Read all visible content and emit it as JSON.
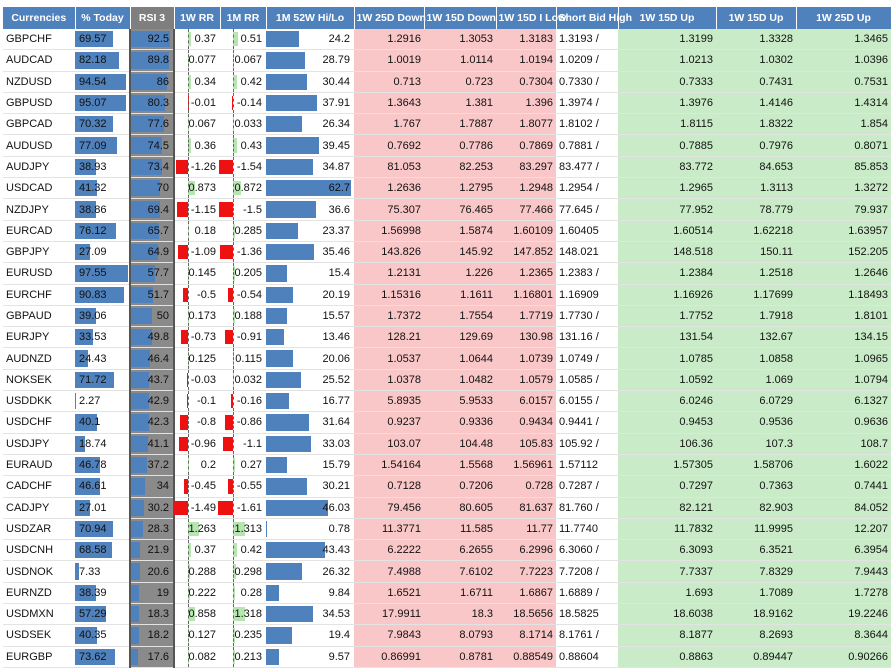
{
  "headers": [
    "Currencies",
    "% Today",
    "RSI 3",
    "1W RR",
    "1M RR",
    "1M 52W Hi/Lo",
    "1W 25D Down",
    "1W 15D Down",
    "1W 15D I Low",
    "Short Bid High",
    "1W 15D Up",
    "1W 15D Up",
    "1W 25D Up"
  ],
  "rows": [
    {
      "pair": "GBPCHF",
      "pct": "69.57",
      "rsi": "92.5",
      "rr1w": "0.37",
      "rr1m": "0.51",
      "hilo": "24.2",
      "d25": "1.2916",
      "d15": "1.3053",
      "low": "1.3183",
      "bid": "1.3193 /",
      "u15": "1.3199",
      "u15b": "1.3328",
      "u25": "1.3465"
    },
    {
      "pair": "AUDCAD",
      "pct": "82.18",
      "rsi": "89.8",
      "rr1w": "0.077",
      "rr1m": "0.067",
      "hilo": "28.79",
      "d25": "1.0019",
      "d15": "1.0114",
      "low": "1.0194",
      "bid": "1.0209 /",
      "u15": "1.0213",
      "u15b": "1.0302",
      "u25": "1.0396"
    },
    {
      "pair": "NZDUSD",
      "pct": "94.54",
      "rsi": "86",
      "rr1w": "0.34",
      "rr1m": "0.42",
      "hilo": "30.44",
      "d25": "0.713",
      "d15": "0.723",
      "low": "0.7304",
      "bid": "0.7330 /",
      "u15": "0.7333",
      "u15b": "0.7431",
      "u25": "0.7531"
    },
    {
      "pair": "GBPUSD",
      "pct": "95.07",
      "rsi": "80.3",
      "rr1w": "-0.01",
      "rr1m": "-0.14",
      "hilo": "37.91",
      "d25": "1.3643",
      "d15": "1.381",
      "low": "1.396",
      "bid": "1.3974 /",
      "u15": "1.3976",
      "u15b": "1.4146",
      "u25": "1.4314"
    },
    {
      "pair": "GBPCAD",
      "pct": "70.32",
      "rsi": "77.6",
      "rr1w": "0.067",
      "rr1m": "0.033",
      "hilo": "26.34",
      "d25": "1.767",
      "d15": "1.7887",
      "low": "1.8077",
      "bid": "1.8102 /",
      "u15": "1.8115",
      "u15b": "1.8322",
      "u25": "1.854"
    },
    {
      "pair": "AUDUSD",
      "pct": "77.09",
      "rsi": "74.5",
      "rr1w": "0.36",
      "rr1m": "0.43",
      "hilo": "39.45",
      "d25": "0.7692",
      "d15": "0.7786",
      "low": "0.7869",
      "bid": "0.7881 /",
      "u15": "0.7885",
      "u15b": "0.7976",
      "u25": "0.8071"
    },
    {
      "pair": "AUDJPY",
      "pct": "38.93",
      "rsi": "73.4",
      "rr1w": "-1.26",
      "rr1m": "-1.54",
      "hilo": "34.87",
      "d25": "81.053",
      "d15": "82.253",
      "low": "83.297",
      "bid": "83.477 /",
      "u15": "83.772",
      "u15b": "84.653",
      "u25": "85.853"
    },
    {
      "pair": "USDCAD",
      "pct": "41.32",
      "rsi": "70",
      "rr1w": "0.873",
      "rr1m": "0.872",
      "hilo": "62.7",
      "d25": "1.2636",
      "d15": "1.2795",
      "low": "1.2948",
      "bid": "1.2954 /",
      "u15": "1.2965",
      "u15b": "1.3113",
      "u25": "1.3272"
    },
    {
      "pair": "NZDJPY",
      "pct": "38.86",
      "rsi": "69.4",
      "rr1w": "-1.15",
      "rr1m": "-1.5",
      "hilo": "36.6",
      "d25": "75.307",
      "d15": "76.465",
      "low": "77.466",
      "bid": "77.645 /",
      "u15": "77.952",
      "u15b": "78.779",
      "u25": "79.937"
    },
    {
      "pair": "EURCAD",
      "pct": "76.12",
      "rsi": "65.7",
      "rr1w": "0.18",
      "rr1m": "0.285",
      "hilo": "23.37",
      "d25": "1.56998",
      "d15": "1.5874",
      "low": "1.60109",
      "bid": "1.60405",
      "u15": "1.60514",
      "u15b": "1.62218",
      "u25": "1.63957"
    },
    {
      "pair": "GBPJPY",
      "pct": "27.09",
      "rsi": "64.9",
      "rr1w": "-1.09",
      "rr1m": "-1.36",
      "hilo": "35.46",
      "d25": "143.826",
      "d15": "145.92",
      "low": "147.852",
      "bid": "148.021",
      "u15": "148.518",
      "u15b": "150.11",
      "u25": "152.205"
    },
    {
      "pair": "EURUSD",
      "pct": "97.55",
      "rsi": "57.7",
      "rr1w": "0.145",
      "rr1m": "0.205",
      "hilo": "15.4",
      "d25": "1.2131",
      "d15": "1.226",
      "low": "1.2365",
      "bid": "1.2383 /",
      "u15": "1.2384",
      "u15b": "1.2518",
      "u25": "1.2646"
    },
    {
      "pair": "EURCHF",
      "pct": "90.83",
      "rsi": "51.7",
      "rr1w": "-0.5",
      "rr1m": "-0.54",
      "hilo": "20.19",
      "d25": "1.15316",
      "d15": "1.1611",
      "low": "1.16801",
      "bid": "1.16909",
      "u15": "1.16926",
      "u15b": "1.17699",
      "u25": "1.18493"
    },
    {
      "pair": "GBPAUD",
      "pct": "39.06",
      "rsi": "50",
      "rr1w": "0.173",
      "rr1m": "0.188",
      "hilo": "15.57",
      "d25": "1.7372",
      "d15": "1.7554",
      "low": "1.7719",
      "bid": "1.7730 /",
      "u15": "1.7752",
      "u15b": "1.7918",
      "u25": "1.8101"
    },
    {
      "pair": "EURJPY",
      "pct": "33.53",
      "rsi": "49.8",
      "rr1w": "-0.73",
      "rr1m": "-0.91",
      "hilo": "13.46",
      "d25": "128.21",
      "d15": "129.69",
      "low": "130.98",
      "bid": "131.16 /",
      "u15": "131.54",
      "u15b": "132.67",
      "u25": "134.15"
    },
    {
      "pair": "AUDNZD",
      "pct": "24.43",
      "rsi": "46.4",
      "rr1w": "0.125",
      "rr1m": "0.115",
      "hilo": "20.06",
      "d25": "1.0537",
      "d15": "1.0644",
      "low": "1.0739",
      "bid": "1.0749 /",
      "u15": "1.0785",
      "u15b": "1.0858",
      "u25": "1.0965"
    },
    {
      "pair": "NOKSEK",
      "pct": "71.72",
      "rsi": "43.7",
      "rr1w": "-0.03",
      "rr1m": "0.032",
      "hilo": "25.52",
      "d25": "1.0378",
      "d15": "1.0482",
      "low": "1.0579",
      "bid": "1.0585 /",
      "u15": "1.0592",
      "u15b": "1.069",
      "u25": "1.0794"
    },
    {
      "pair": "USDDKK",
      "pct": "2.27",
      "rsi": "42.9",
      "rr1w": "-0.1",
      "rr1m": "-0.16",
      "hilo": "16.77",
      "d25": "5.8935",
      "d15": "5.9533",
      "low": "6.0157",
      "bid": "6.0155 /",
      "u15": "6.0246",
      "u15b": "6.0729",
      "u25": "6.1327"
    },
    {
      "pair": "USDCHF",
      "pct": "40.1",
      "rsi": "42.3",
      "rr1w": "-0.8",
      "rr1m": "-0.86",
      "hilo": "31.64",
      "d25": "0.9237",
      "d15": "0.9336",
      "low": "0.9434",
      "bid": "0.9441 /",
      "u15": "0.9453",
      "u15b": "0.9536",
      "u25": "0.9636"
    },
    {
      "pair": "USDJPY",
      "pct": "18.74",
      "rsi": "41.1",
      "rr1w": "-0.96",
      "rr1m": "-1.1",
      "hilo": "33.03",
      "d25": "103.07",
      "d15": "104.48",
      "low": "105.83",
      "bid": "105.92 /",
      "u15": "106.36",
      "u15b": "107.3",
      "u25": "108.7"
    },
    {
      "pair": "EURAUD",
      "pct": "46.78",
      "rsi": "37.2",
      "rr1w": "0.2",
      "rr1m": "0.27",
      "hilo": "15.79",
      "d25": "1.54164",
      "d15": "1.5568",
      "low": "1.56961",
      "bid": "1.57112",
      "u15": "1.57305",
      "u15b": "1.58706",
      "u25": "1.6022"
    },
    {
      "pair": "CADCHF",
      "pct": "46.61",
      "rsi": "34",
      "rr1w": "-0.45",
      "rr1m": "-0.55",
      "hilo": "30.21",
      "d25": "0.7128",
      "d15": "0.7206",
      "low": "0.728",
      "bid": "0.7287 /",
      "u15": "0.7297",
      "u15b": "0.7363",
      "u25": "0.7441"
    },
    {
      "pair": "CADJPY",
      "pct": "27.01",
      "rsi": "30.2",
      "rr1w": "-1.49",
      "rr1m": "-1.61",
      "hilo": "46.03",
      "d25": "79.456",
      "d15": "80.605",
      "low": "81.637",
      "bid": "81.760 /",
      "u15": "82.121",
      "u15b": "82.903",
      "u25": "84.052"
    },
    {
      "pair": "USDZAR",
      "pct": "70.94",
      "rsi": "28.3",
      "rr1w": "1.263",
      "rr1m": "1.313",
      "hilo": "0.78",
      "d25": "11.3771",
      "d15": "11.585",
      "low": "11.77",
      "bid": "11.7740",
      "u15": "11.7832",
      "u15b": "11.9995",
      "u25": "12.207"
    },
    {
      "pair": "USDCNH",
      "pct": "68.58",
      "rsi": "21.9",
      "rr1w": "0.37",
      "rr1m": "0.42",
      "hilo": "43.43",
      "d25": "6.2222",
      "d15": "6.2655",
      "low": "6.2996",
      "bid": "6.3060 /",
      "u15": "6.3093",
      "u15b": "6.3521",
      "u25": "6.3954"
    },
    {
      "pair": "USDNOK",
      "pct": "7.33",
      "rsi": "20.6",
      "rr1w": "0.288",
      "rr1m": "0.298",
      "hilo": "26.32",
      "d25": "7.4988",
      "d15": "7.6102",
      "low": "7.7223",
      "bid": "7.7208 /",
      "u15": "7.7337",
      "u15b": "7.8329",
      "u25": "7.9443"
    },
    {
      "pair": "EURNZD",
      "pct": "38.39",
      "rsi": "19",
      "rr1w": "0.222",
      "rr1m": "0.28",
      "hilo": "9.84",
      "d25": "1.6521",
      "d15": "1.6711",
      "low": "1.6867",
      "bid": "1.6889 /",
      "u15": "1.693",
      "u15b": "1.7089",
      "u25": "1.7278"
    },
    {
      "pair": "USDMXN",
      "pct": "57.29",
      "rsi": "18.3",
      "rr1w": "0.858",
      "rr1m": "1.318",
      "hilo": "34.53",
      "d25": "17.9911",
      "d15": "18.3",
      "low": "18.5656",
      "bid": "18.5825",
      "u15": "18.6038",
      "u15b": "18.9162",
      "u25": "19.2246"
    },
    {
      "pair": "USDSEK",
      "pct": "40.35",
      "rsi": "18.2",
      "rr1w": "0.127",
      "rr1m": "0.235",
      "hilo": "19.4",
      "d25": "7.9843",
      "d15": "8.0793",
      "low": "8.1714",
      "bid": "8.1761 /",
      "u15": "8.1877",
      "u15b": "8.2693",
      "u25": "8.3644"
    },
    {
      "pair": "EURGBP",
      "pct": "73.62",
      "rsi": "17.6",
      "rr1w": "0.082",
      "rr1m": "0.213",
      "hilo": "9.57",
      "d25": "0.86991",
      "d15": "0.8781",
      "low": "0.88549",
      "bid": "0.88604",
      "u15": "0.8863",
      "u15b": "0.89447",
      "u25": "0.90266"
    }
  ]
}
